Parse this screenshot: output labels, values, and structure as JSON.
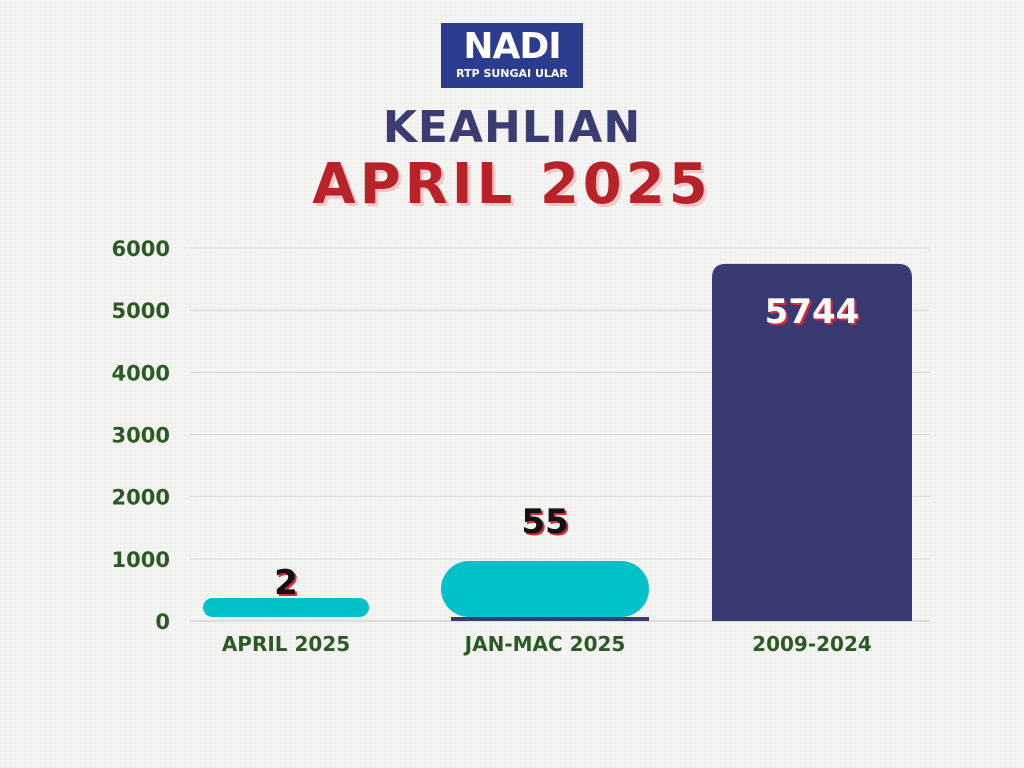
{
  "logo": {
    "main": "NADI",
    "sub": "RTP SUNGAI ULAR"
  },
  "header": {
    "line1": "KEAHLIAN",
    "line2": "APRIL 2025"
  },
  "colors": {
    "bar_teal": "#00c1c8",
    "bar_navy": "#3a3a73",
    "axis_text": "#2b5a25",
    "title_navy": "#3a3c72",
    "title_red": "#b8232a"
  },
  "chart_data": {
    "type": "bar",
    "categories": [
      "APRIL 2025",
      "JAN-MAC 2025",
      "2009-2024"
    ],
    "values": [
      2,
      55,
      5744
    ],
    "data_labels": [
      "2",
      "55",
      "5744"
    ],
    "y_ticks": [
      "0",
      "1000",
      "2000",
      "3000",
      "4000",
      "5000",
      "6000"
    ],
    "ylim": [
      0,
      6000
    ],
    "grid": true,
    "legend": "none"
  }
}
